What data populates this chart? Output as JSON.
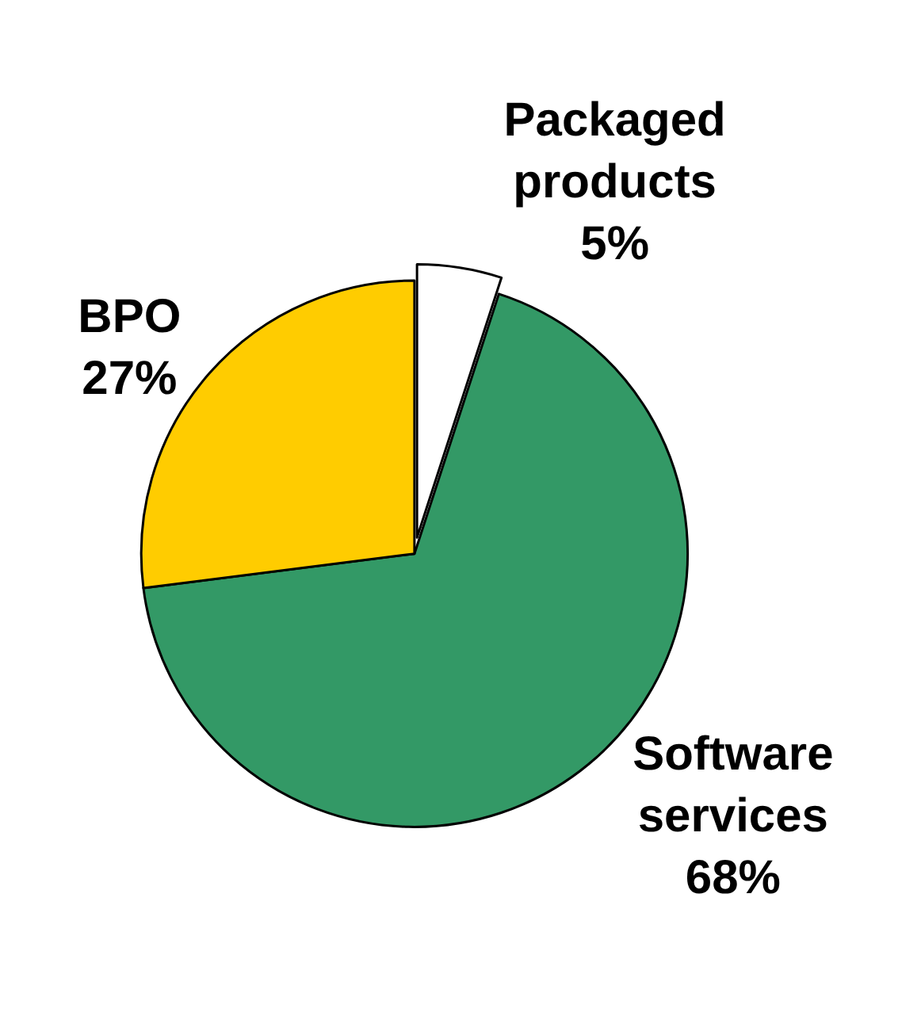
{
  "chart_data": {
    "type": "pie",
    "categories": [
      "Packaged products",
      "Software services",
      "BPO"
    ],
    "values": [
      5,
      68,
      27
    ],
    "colors": [
      "#ffffff",
      "#339966",
      "#ffcc00"
    ],
    "value_labels": [
      "5%",
      "68%",
      "27%"
    ],
    "legend": false
  }
}
